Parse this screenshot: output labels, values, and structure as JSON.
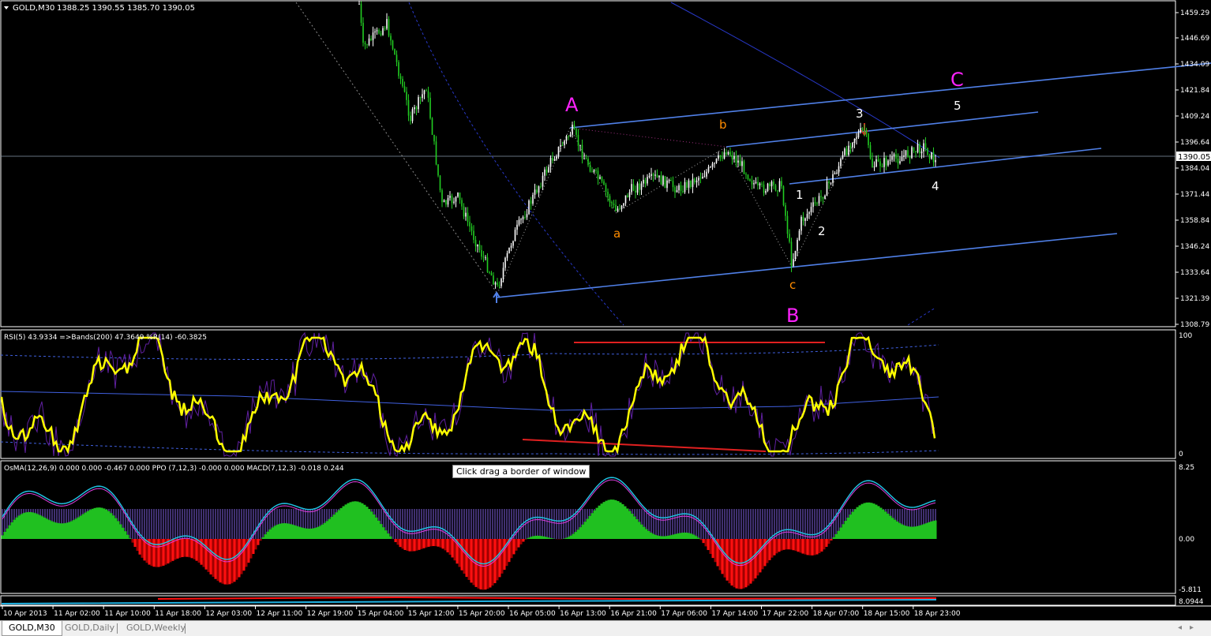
{
  "header": {
    "symbol": "GOLD,M30",
    "ohlc": "1388.25 1390.55 1385.70 1390.05"
  },
  "price_axis": [
    "1459.29",
    "1446.69",
    "1434.09",
    "1421.84",
    "1409.24",
    "1396.64",
    "1384.04",
    "1371.44",
    "1358.84",
    "1346.24",
    "1333.64",
    "1321.39",
    "1308.79"
  ],
  "current_price": "1390.05",
  "wave_labels": {
    "A": "A",
    "B": "B",
    "C": "C",
    "a": "a",
    "b": "b",
    "c": "c",
    "w1": "1",
    "w2": "2",
    "w3": "3",
    "w4": "4",
    "w5": "5"
  },
  "colors": {
    "major_wave": "#ff22ff",
    "minor_wave": "#ff8c00",
    "impulse": "#ffffff",
    "channel": "#5080e8",
    "rsi": "#ffff00",
    "background": "#000000"
  },
  "rsi_panel": {
    "header": "RSI(5) 43.9334  =>Bands(200) 47.3649  %R(14) -60.3825",
    "axis_max": "100",
    "axis_min": "0"
  },
  "macd_panel": {
    "header": "OsMA(12,26,9) 0.000 0.000 -0.467 0.000  PPO (7,12,3) -0.000 0.000  MACD(7,12,3) -0.018 0.244",
    "axis_max": "8.25",
    "axis_zero": "0.00",
    "axis_min": "-5.811"
  },
  "mini_panel": {
    "axis_label": "8.0944"
  },
  "tooltip": "Click  drag a border of window",
  "time_axis": [
    "10 Apr 2013",
    "11 Apr 02:00",
    "11 Apr 10:00",
    "11 Apr 18:00",
    "12 Apr 03:00",
    "12 Apr 11:00",
    "12 Apr 19:00",
    "15 Apr 04:00",
    "15 Apr 12:00",
    "15 Apr 20:00",
    "16 Apr 05:00",
    "16 Apr 13:00",
    "16 Apr 21:00",
    "17 Apr 06:00",
    "17 Apr 14:00",
    "17 Apr 22:00",
    "18 Apr 07:00",
    "18 Apr 15:00",
    "18 Apr 23:00"
  ],
  "tabs": [
    {
      "label": "GOLD,M30",
      "active": true
    },
    {
      "label": "GOLD,Daily"
    },
    {
      "label": "GOLD,Weekly"
    }
  ]
}
